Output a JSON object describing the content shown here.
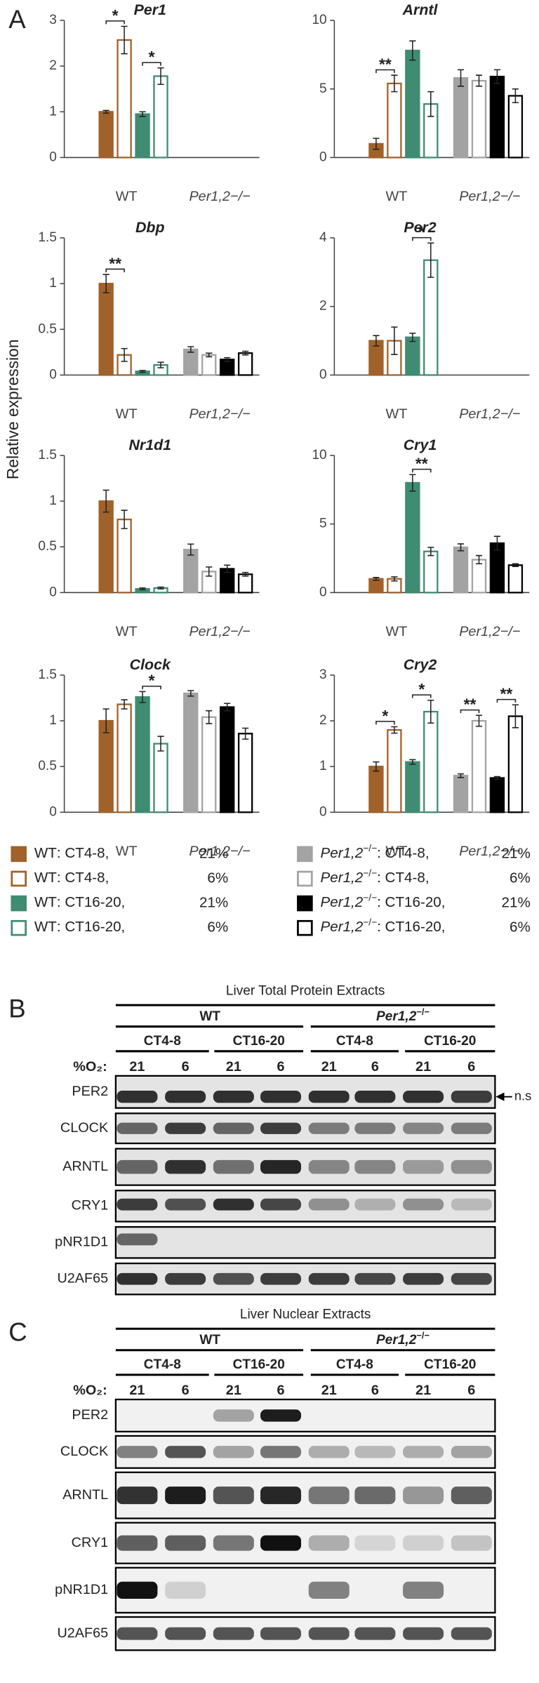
{
  "panel_a": {
    "label": "A",
    "y_label": "Relative expression"
  },
  "legend": {
    "items": [
      {
        "genotype": "WT",
        "time": ": CT4-8,",
        "o2": "21%",
        "color": "#a0622a",
        "filled": true
      },
      {
        "genotype": "WT",
        "time": ": CT4-8,",
        "o2": "6%",
        "color": "#a0622a",
        "filled": false
      },
      {
        "genotype": "WT",
        "time": ": CT16-20,",
        "o2": "21%",
        "color": "#3f8c72",
        "filled": true
      },
      {
        "genotype": "WT",
        "time": ": CT16-20,",
        "o2": "6%",
        "color": "#3f8c72",
        "filled": false
      },
      {
        "genotype": "Per1,2",
        "sup": "−/−",
        "time": ": CT4-8,",
        "o2": "21%",
        "color": "#a3a3a3",
        "filled": true
      },
      {
        "genotype": "Per1,2",
        "sup": "−/−",
        "time": ": CT4-8,",
        "o2": "6%",
        "color": "#a3a3a3",
        "filled": false
      },
      {
        "genotype": "Per1,2",
        "sup": "−/−",
        "time": ": CT16-20,",
        "o2": "21%",
        "color": "#000000",
        "filled": true
      },
      {
        "genotype": "Per1,2",
        "sup": "−/−",
        "time": ": CT16-20,",
        "o2": "6%",
        "color": "#000000",
        "filled": false
      }
    ]
  },
  "chart_data": [
    {
      "type": "bar",
      "title": "Per1",
      "categories": [
        "WT",
        "Per1,2−/−"
      ],
      "ylim": [
        0,
        3
      ],
      "yticks": [
        0,
        1,
        2,
        3
      ],
      "series": [
        {
          "values": [
            1.0,
            null
          ],
          "errors": [
            0.03,
            null
          ]
        },
        {
          "values": [
            2.57,
            null
          ],
          "errors": [
            0.3,
            null
          ]
        },
        {
          "values": [
            0.95,
            null
          ],
          "errors": [
            0.05,
            null
          ]
        },
        {
          "values": [
            1.78,
            null
          ],
          "errors": [
            0.18,
            null
          ]
        }
      ],
      "annotations": [
        "*",
        "*"
      ]
    },
    {
      "type": "bar",
      "title": "Arntl",
      "categories": [
        "WT",
        "Per1,2−/−"
      ],
      "ylim": [
        0,
        10
      ],
      "yticks": [
        0,
        5,
        10
      ],
      "series": [
        {
          "values": [
            1.0,
            5.8
          ],
          "errors": [
            0.4,
            0.6
          ]
        },
        {
          "values": [
            5.4,
            5.6
          ],
          "errors": [
            0.6,
            0.4
          ]
        },
        {
          "values": [
            7.8,
            5.9
          ],
          "errors": [
            0.7,
            0.5
          ]
        },
        {
          "values": [
            3.9,
            4.5
          ],
          "errors": [
            0.9,
            0.5
          ]
        }
      ],
      "annotations": [
        "**"
      ]
    },
    {
      "type": "bar",
      "title": "Dbp",
      "categories": [
        "WT",
        "Per1,2−/−"
      ],
      "ylim": [
        0,
        1.5
      ],
      "yticks": [
        0,
        0.5,
        1,
        1.5
      ],
      "series": [
        {
          "values": [
            1.0,
            0.28
          ],
          "errors": [
            0.1,
            0.03
          ]
        },
        {
          "values": [
            0.22,
            0.22
          ],
          "errors": [
            0.07,
            0.02
          ]
        },
        {
          "values": [
            0.04,
            0.17
          ],
          "errors": [
            0.01,
            0.02
          ]
        },
        {
          "values": [
            0.11,
            0.24
          ],
          "errors": [
            0.03,
            0.02
          ]
        }
      ],
      "annotations": [
        "**"
      ]
    },
    {
      "type": "bar",
      "title": "Per2",
      "categories": [
        "WT",
        "Per1,2−/−"
      ],
      "ylim": [
        0,
        4
      ],
      "yticks": [
        0,
        2,
        4
      ],
      "series": [
        {
          "values": [
            1.0,
            null
          ],
          "errors": [
            0.15,
            null
          ]
        },
        {
          "values": [
            1.0,
            null
          ],
          "errors": [
            0.4,
            null
          ]
        },
        {
          "values": [
            1.1,
            null
          ],
          "errors": [
            0.12,
            null
          ]
        },
        {
          "values": [
            3.35,
            null
          ],
          "errors": [
            0.5,
            null
          ]
        }
      ],
      "annotations": [
        "*"
      ]
    },
    {
      "type": "bar",
      "title": "Nr1d1",
      "categories": [
        "WT",
        "Per1,2−/−"
      ],
      "ylim": [
        0,
        1.5
      ],
      "yticks": [
        0,
        0.5,
        1,
        1.5
      ],
      "series": [
        {
          "values": [
            1.0,
            0.47
          ],
          "errors": [
            0.12,
            0.06
          ]
        },
        {
          "values": [
            0.8,
            0.23
          ],
          "errors": [
            0.1,
            0.05
          ]
        },
        {
          "values": [
            0.04,
            0.26
          ],
          "errors": [
            0.01,
            0.04
          ]
        },
        {
          "values": [
            0.05,
            0.2
          ],
          "errors": [
            0.01,
            0.02
          ]
        }
      ],
      "annotations": []
    },
    {
      "type": "bar",
      "title": "Cry1",
      "categories": [
        "WT",
        "Per1,2−/−"
      ],
      "ylim": [
        0,
        10
      ],
      "yticks": [
        0,
        5,
        10
      ],
      "series": [
        {
          "values": [
            1.0,
            3.3
          ],
          "errors": [
            0.1,
            0.25
          ]
        },
        {
          "values": [
            1.0,
            2.4
          ],
          "errors": [
            0.15,
            0.3
          ]
        },
        {
          "values": [
            8.0,
            3.6
          ],
          "errors": [
            0.6,
            0.5
          ]
        },
        {
          "values": [
            3.0,
            2.0
          ],
          "errors": [
            0.3,
            0.1
          ]
        }
      ],
      "annotations": [
        "**"
      ]
    },
    {
      "type": "bar",
      "title": "Clock",
      "categories": [
        "WT",
        "Per1,2−/−"
      ],
      "ylim": [
        0,
        1.5
      ],
      "yticks": [
        0,
        0.5,
        1,
        1.5
      ],
      "series": [
        {
          "values": [
            1.0,
            1.3
          ],
          "errors": [
            0.13,
            0.03
          ]
        },
        {
          "values": [
            1.18,
            1.04
          ],
          "errors": [
            0.05,
            0.07
          ]
        },
        {
          "values": [
            1.26,
            1.15
          ],
          "errors": [
            0.06,
            0.04
          ]
        },
        {
          "values": [
            0.75,
            0.86
          ],
          "errors": [
            0.08,
            0.06
          ]
        }
      ],
      "annotations": [
        "*"
      ]
    },
    {
      "type": "bar",
      "title": "Cry2",
      "categories": [
        "WT",
        "Per1,2−/−"
      ],
      "ylim": [
        0,
        3
      ],
      "yticks": [
        0,
        1,
        2,
        3
      ],
      "series": [
        {
          "values": [
            1.0,
            0.8
          ],
          "errors": [
            0.1,
            0.04
          ]
        },
        {
          "values": [
            1.8,
            2.0
          ],
          "errors": [
            0.07,
            0.12
          ]
        },
        {
          "values": [
            1.1,
            0.75
          ],
          "errors": [
            0.05,
            0.03
          ]
        },
        {
          "values": [
            2.2,
            2.1
          ],
          "errors": [
            0.25,
            0.25
          ]
        }
      ],
      "annotations": [
        "*",
        "*",
        "**",
        "**"
      ]
    }
  ],
  "blots": [
    {
      "label": "B",
      "title": "Liver Total Protein Extracts",
      "genotypes": [
        {
          "text": "WT"
        },
        {
          "text": "Per1,2",
          "sup": "−/−"
        }
      ],
      "times": [
        "CT4-8",
        "CT16-20",
        "CT4-8",
        "CT16-20"
      ],
      "o2_label": "%O₂:",
      "lanes": [
        21,
        6,
        21,
        6,
        21,
        6,
        21,
        6
      ],
      "rows": [
        "PER2",
        "CLOCK",
        "ARNTL",
        "CRY1",
        "pNR1D1",
        "U2AF65"
      ],
      "note": "n.s"
    },
    {
      "label": "C",
      "title": "Liver Nuclear Extracts",
      "genotypes": [
        {
          "text": "WT"
        },
        {
          "text": "Per1,2",
          "sup": "−/−"
        }
      ],
      "times": [
        "CT4-8",
        "CT16-20",
        "CT4-8",
        "CT16-20"
      ],
      "o2_label": "%O₂:",
      "lanes": [
        21,
        6,
        21,
        6,
        21,
        6,
        21,
        6
      ],
      "rows": [
        "PER2",
        "CLOCK",
        "ARNTL",
        "CRY1",
        "pNR1D1",
        "U2AF65"
      ]
    }
  ]
}
